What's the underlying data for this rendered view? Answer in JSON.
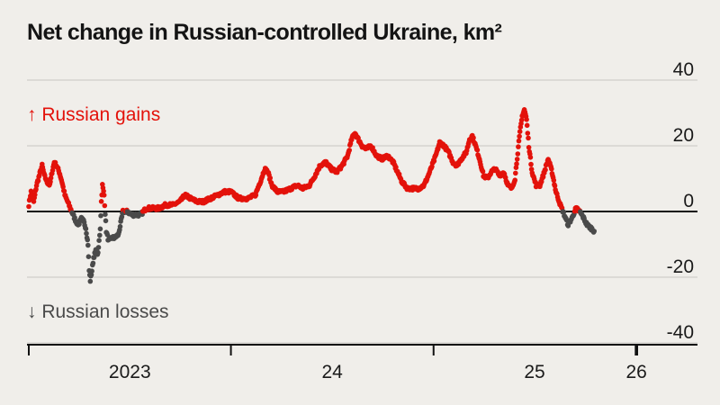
{
  "chart_data": {
    "type": "scatter",
    "title": "Net change in Russian-controlled Ukraine, km²",
    "xlabel": "",
    "ylabel": "",
    "x_range": [
      "2023-01-01",
      "2026-02-28"
    ],
    "x_ticks": [
      "2023-01-01",
      "2024-01-01",
      "2025-01-01",
      "2026-01-01"
    ],
    "x_tick_labels": [
      "2023",
      "24",
      "25",
      "26"
    ],
    "ylim": [
      -40,
      40
    ],
    "y_ticks": [
      40,
      20,
      0,
      -20,
      -40
    ],
    "grid": true,
    "annotations": {
      "gains": "↑ Russian gains",
      "losses": "↓ Russian losses"
    },
    "colors": {
      "gains": "#e3120b",
      "losses": "#4a4a4a",
      "zero_line": "#111111",
      "grid": "#c8c6c2"
    },
    "series": [
      {
        "points": [
          [
            "2023-01-01",
            2
          ],
          [
            "2023-01-05",
            6
          ],
          [
            "2023-01-10",
            3
          ],
          [
            "2023-01-15",
            8
          ],
          [
            "2023-01-20",
            11
          ],
          [
            "2023-01-25",
            14
          ],
          [
            "2023-01-29",
            11
          ],
          [
            "2023-02-03",
            9
          ],
          [
            "2023-02-08",
            8
          ],
          [
            "2023-02-12",
            12
          ],
          [
            "2023-02-16",
            15
          ],
          [
            "2023-02-20",
            14
          ],
          [
            "2023-02-25",
            12
          ],
          [
            "2023-03-02",
            9
          ],
          [
            "2023-03-07",
            5
          ],
          [
            "2023-03-12",
            3
          ],
          [
            "2023-03-17",
            1
          ],
          [
            "2023-03-22",
            -1
          ],
          [
            "2023-03-27",
            -3
          ],
          [
            "2023-04-01",
            -4
          ],
          [
            "2023-04-05",
            -2
          ],
          [
            "2023-04-10",
            -3
          ],
          [
            "2023-04-14",
            -5
          ],
          [
            "2023-04-18",
            -10
          ],
          [
            "2023-04-20",
            -18
          ],
          [
            "2023-04-22",
            -21
          ],
          [
            "2023-04-25",
            -18
          ],
          [
            "2023-04-28",
            -14
          ],
          [
            "2023-05-02",
            -12
          ],
          [
            "2023-05-06",
            -13
          ],
          [
            "2023-05-10",
            -5
          ],
          [
            "2023-05-12",
            3
          ],
          [
            "2023-05-14",
            8
          ],
          [
            "2023-05-17",
            5
          ],
          [
            "2023-05-21",
            -6
          ],
          [
            "2023-05-25",
            -9
          ],
          [
            "2023-05-30",
            -8
          ],
          [
            "2023-06-05",
            -8
          ],
          [
            "2023-06-12",
            -7
          ],
          [
            "2023-06-20",
            0
          ],
          [
            "2023-06-28",
            0
          ],
          [
            "2023-07-06",
            -1
          ],
          [
            "2023-07-14",
            -1
          ],
          [
            "2023-07-22",
            -1
          ],
          [
            "2023-08-01",
            1
          ],
          [
            "2023-08-12",
            1
          ],
          [
            "2023-08-24",
            1
          ],
          [
            "2023-09-05",
            2
          ],
          [
            "2023-09-18",
            2
          ],
          [
            "2023-10-01",
            3
          ],
          [
            "2023-10-10",
            5
          ],
          [
            "2023-10-20",
            4
          ],
          [
            "2023-11-01",
            3
          ],
          [
            "2023-11-12",
            3
          ],
          [
            "2023-11-25",
            4
          ],
          [
            "2023-12-08",
            5
          ],
          [
            "2023-12-20",
            6
          ],
          [
            "2024-01-01",
            6
          ],
          [
            "2024-01-15",
            4
          ],
          [
            "2024-02-01",
            4
          ],
          [
            "2024-02-14",
            5
          ],
          [
            "2024-02-25",
            10
          ],
          [
            "2024-03-02",
            13
          ],
          [
            "2024-03-08",
            12
          ],
          [
            "2024-03-15",
            8
          ],
          [
            "2024-03-25",
            6
          ],
          [
            "2024-04-05",
            6
          ],
          [
            "2024-04-18",
            7
          ],
          [
            "2024-04-30",
            8
          ],
          [
            "2024-05-10",
            7
          ],
          [
            "2024-05-22",
            8
          ],
          [
            "2024-06-01",
            11
          ],
          [
            "2024-06-10",
            14
          ],
          [
            "2024-06-20",
            15
          ],
          [
            "2024-06-30",
            13
          ],
          [
            "2024-07-10",
            12
          ],
          [
            "2024-07-20",
            14
          ],
          [
            "2024-07-30",
            17
          ],
          [
            "2024-08-06",
            22
          ],
          [
            "2024-08-12",
            24
          ],
          [
            "2024-08-18",
            22
          ],
          [
            "2024-08-25",
            20
          ],
          [
            "2024-09-01",
            19
          ],
          [
            "2024-09-10",
            20
          ],
          [
            "2024-09-20",
            17
          ],
          [
            "2024-09-30",
            16
          ],
          [
            "2024-10-10",
            17
          ],
          [
            "2024-10-20",
            15
          ],
          [
            "2024-10-28",
            12
          ],
          [
            "2024-11-05",
            9
          ],
          [
            "2024-11-15",
            7
          ],
          [
            "2024-11-25",
            7
          ],
          [
            "2024-12-05",
            7
          ],
          [
            "2024-12-15",
            8
          ],
          [
            "2024-12-25",
            12
          ],
          [
            "2025-01-05",
            17
          ],
          [
            "2025-01-12",
            21
          ],
          [
            "2025-01-20",
            20
          ],
          [
            "2025-01-28",
            18
          ],
          [
            "2025-02-05",
            15
          ],
          [
            "2025-02-12",
            14
          ],
          [
            "2025-02-20",
            16
          ],
          [
            "2025-03-01",
            18
          ],
          [
            "2025-03-07",
            22
          ],
          [
            "2025-03-12",
            23
          ],
          [
            "2025-03-18",
            20
          ],
          [
            "2025-03-25",
            16
          ],
          [
            "2025-04-01",
            11
          ],
          [
            "2025-04-08",
            10
          ],
          [
            "2025-04-15",
            12
          ],
          [
            "2025-04-22",
            13
          ],
          [
            "2025-04-30",
            11
          ],
          [
            "2025-05-08",
            12
          ],
          [
            "2025-05-15",
            8
          ],
          [
            "2025-05-22",
            7
          ],
          [
            "2025-05-28",
            10
          ],
          [
            "2025-06-02",
            18
          ],
          [
            "2025-06-06",
            24
          ],
          [
            "2025-06-10",
            29
          ],
          [
            "2025-06-14",
            31
          ],
          [
            "2025-06-18",
            28
          ],
          [
            "2025-06-22",
            20
          ],
          [
            "2025-06-28",
            12
          ],
          [
            "2025-07-05",
            8
          ],
          [
            "2025-07-12",
            8
          ],
          [
            "2025-07-20",
            12
          ],
          [
            "2025-07-27",
            16
          ],
          [
            "2025-08-03",
            12
          ],
          [
            "2025-08-10",
            6
          ],
          [
            "2025-08-18",
            2
          ],
          [
            "2025-08-25",
            -1
          ],
          [
            "2025-09-01",
            -4
          ],
          [
            "2025-09-08",
            -2
          ],
          [
            "2025-09-15",
            1
          ],
          [
            "2025-09-22",
            0
          ],
          [
            "2025-09-29",
            -2
          ],
          [
            "2025-10-05",
            -4
          ],
          [
            "2025-10-12",
            -5
          ],
          [
            "2025-10-18",
            -6
          ]
        ]
      }
    ]
  }
}
